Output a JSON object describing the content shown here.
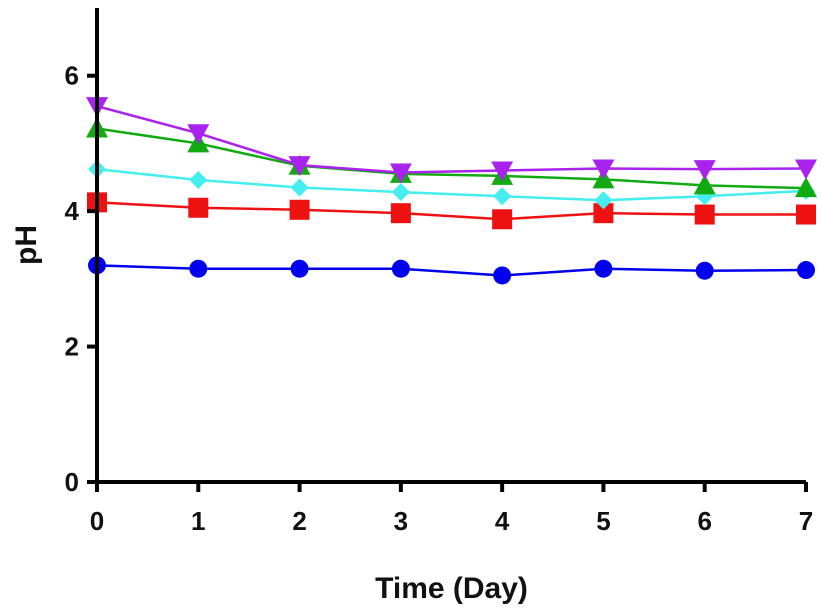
{
  "chart_data": {
    "type": "line",
    "xlabel": "Time (Day)",
    "ylabel": "pH",
    "x": [
      0,
      1,
      2,
      3,
      4,
      5,
      6,
      7
    ],
    "xlim": [
      0,
      7
    ],
    "ylim": [
      0,
      7
    ],
    "xticks": [
      "0",
      "1",
      "2",
      "3",
      "4",
      "5",
      "6",
      "7"
    ],
    "yticks": [
      "0",
      "2",
      "4",
      "6"
    ],
    "grid": false,
    "series": [
      {
        "color": "#0000ee",
        "marker": "circle",
        "values": [
          3.2,
          3.15,
          3.15,
          3.15,
          3.05,
          3.15,
          3.12,
          3.13
        ]
      },
      {
        "color": "#ee1111",
        "marker": "square",
        "values": [
          4.13,
          4.05,
          4.02,
          3.97,
          3.88,
          3.97,
          3.95,
          3.95
        ]
      },
      {
        "color": "#44eeee",
        "marker": "diamond",
        "values": [
          4.62,
          4.46,
          4.35,
          4.28,
          4.22,
          4.16,
          4.22,
          4.3
        ]
      },
      {
        "color": "#11aa11",
        "marker": "triangle-up",
        "values": [
          5.22,
          5.0,
          4.67,
          4.55,
          4.52,
          4.47,
          4.38,
          4.34
        ]
      },
      {
        "color": "#aa22ee",
        "marker": "triangle-down",
        "values": [
          5.55,
          5.15,
          4.68,
          4.57,
          4.6,
          4.63,
          4.62,
          4.63
        ]
      }
    ]
  }
}
